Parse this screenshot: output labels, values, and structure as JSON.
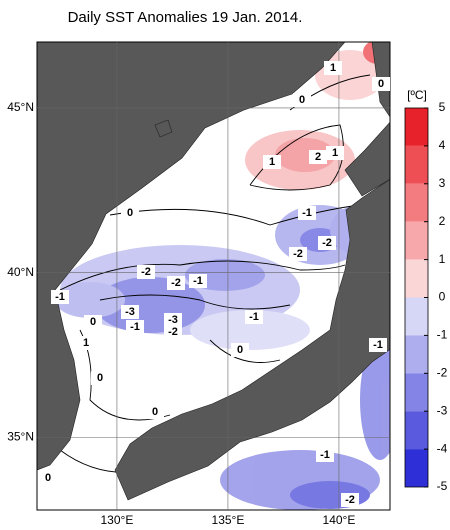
{
  "map": {
    "title": "Daily SST Anomalies 19 Jan. 2014.",
    "lon_ticks": [
      {
        "value": 130,
        "label": "130°E"
      },
      {
        "value": 135,
        "label": "135°E"
      },
      {
        "value": 140,
        "label": "140°E"
      }
    ],
    "lat_ticks": [
      {
        "value": 45,
        "label": "45°N"
      },
      {
        "value": 40,
        "label": "40°N"
      },
      {
        "value": 35,
        "label": "35°N"
      }
    ],
    "xlim": [
      126.4,
      142.3
    ],
    "ylim": [
      32.8,
      47.0
    ],
    "colorbar": {
      "unit": "[ºC]",
      "ticks": [
        5,
        4,
        3,
        2,
        1,
        0,
        -1,
        -2,
        -3,
        -4,
        -5
      ],
      "colors": [
        "#e8222a",
        "#ee4f55",
        "#f37c80",
        "#f7a8aa",
        "#fbd6d7",
        "#ffffff",
        "#d6d6f6",
        "#aeaeef",
        "#8484e6",
        "#5a5ade",
        "#2f2fd8"
      ]
    },
    "contour_labels": [
      1,
      0,
      0,
      1,
      2,
      1,
      0,
      -1,
      -2,
      -2,
      -2,
      -2,
      -1,
      -1,
      -3,
      -1,
      -3,
      -2,
      0,
      -1,
      1,
      0,
      0,
      -1,
      0,
      -1,
      0,
      -2
    ]
  }
}
